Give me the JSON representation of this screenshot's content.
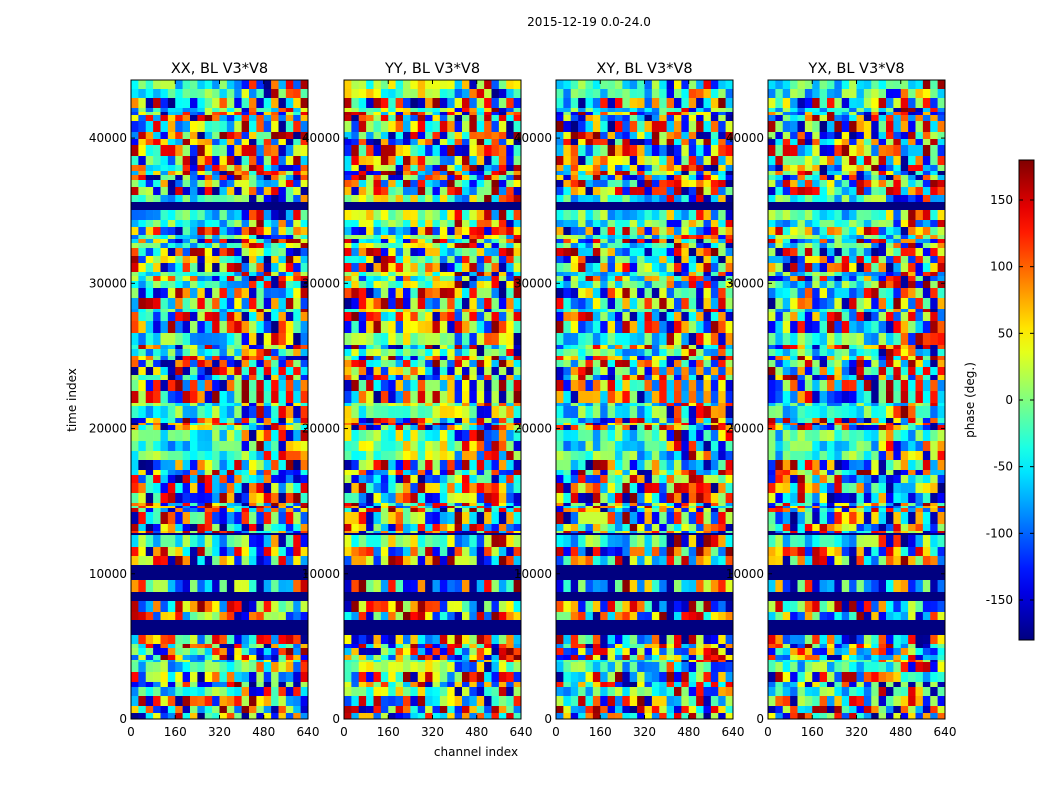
{
  "chart_data": {
    "type": "heatmap",
    "suptitle": "2015-12-19 0.0-24.0",
    "xlabel": "channel index",
    "ylabel": "time index",
    "xlim": [
      0,
      640
    ],
    "ylim": [
      0,
      44000
    ],
    "xticks": [
      0,
      160,
      320,
      480,
      640
    ],
    "yticks": [
      0,
      10000,
      20000,
      30000,
      40000
    ],
    "panels": [
      {
        "title": "XX, BL V3*V8",
        "pol": "XX"
      },
      {
        "title": "YY, BL V3*V8",
        "pol": "YY"
      },
      {
        "title": "XY, BL V3*V8",
        "pol": "XY"
      },
      {
        "title": "YX, BL V3*V8",
        "pol": "YX"
      }
    ],
    "colorbar": {
      "label": "phase (deg.)",
      "range": [
        -180,
        180
      ],
      "ticks": [
        -150,
        -100,
        -50,
        0,
        50,
        100,
        150
      ],
      "colormap": "jet"
    },
    "flagged_row_color": "#000080"
  }
}
